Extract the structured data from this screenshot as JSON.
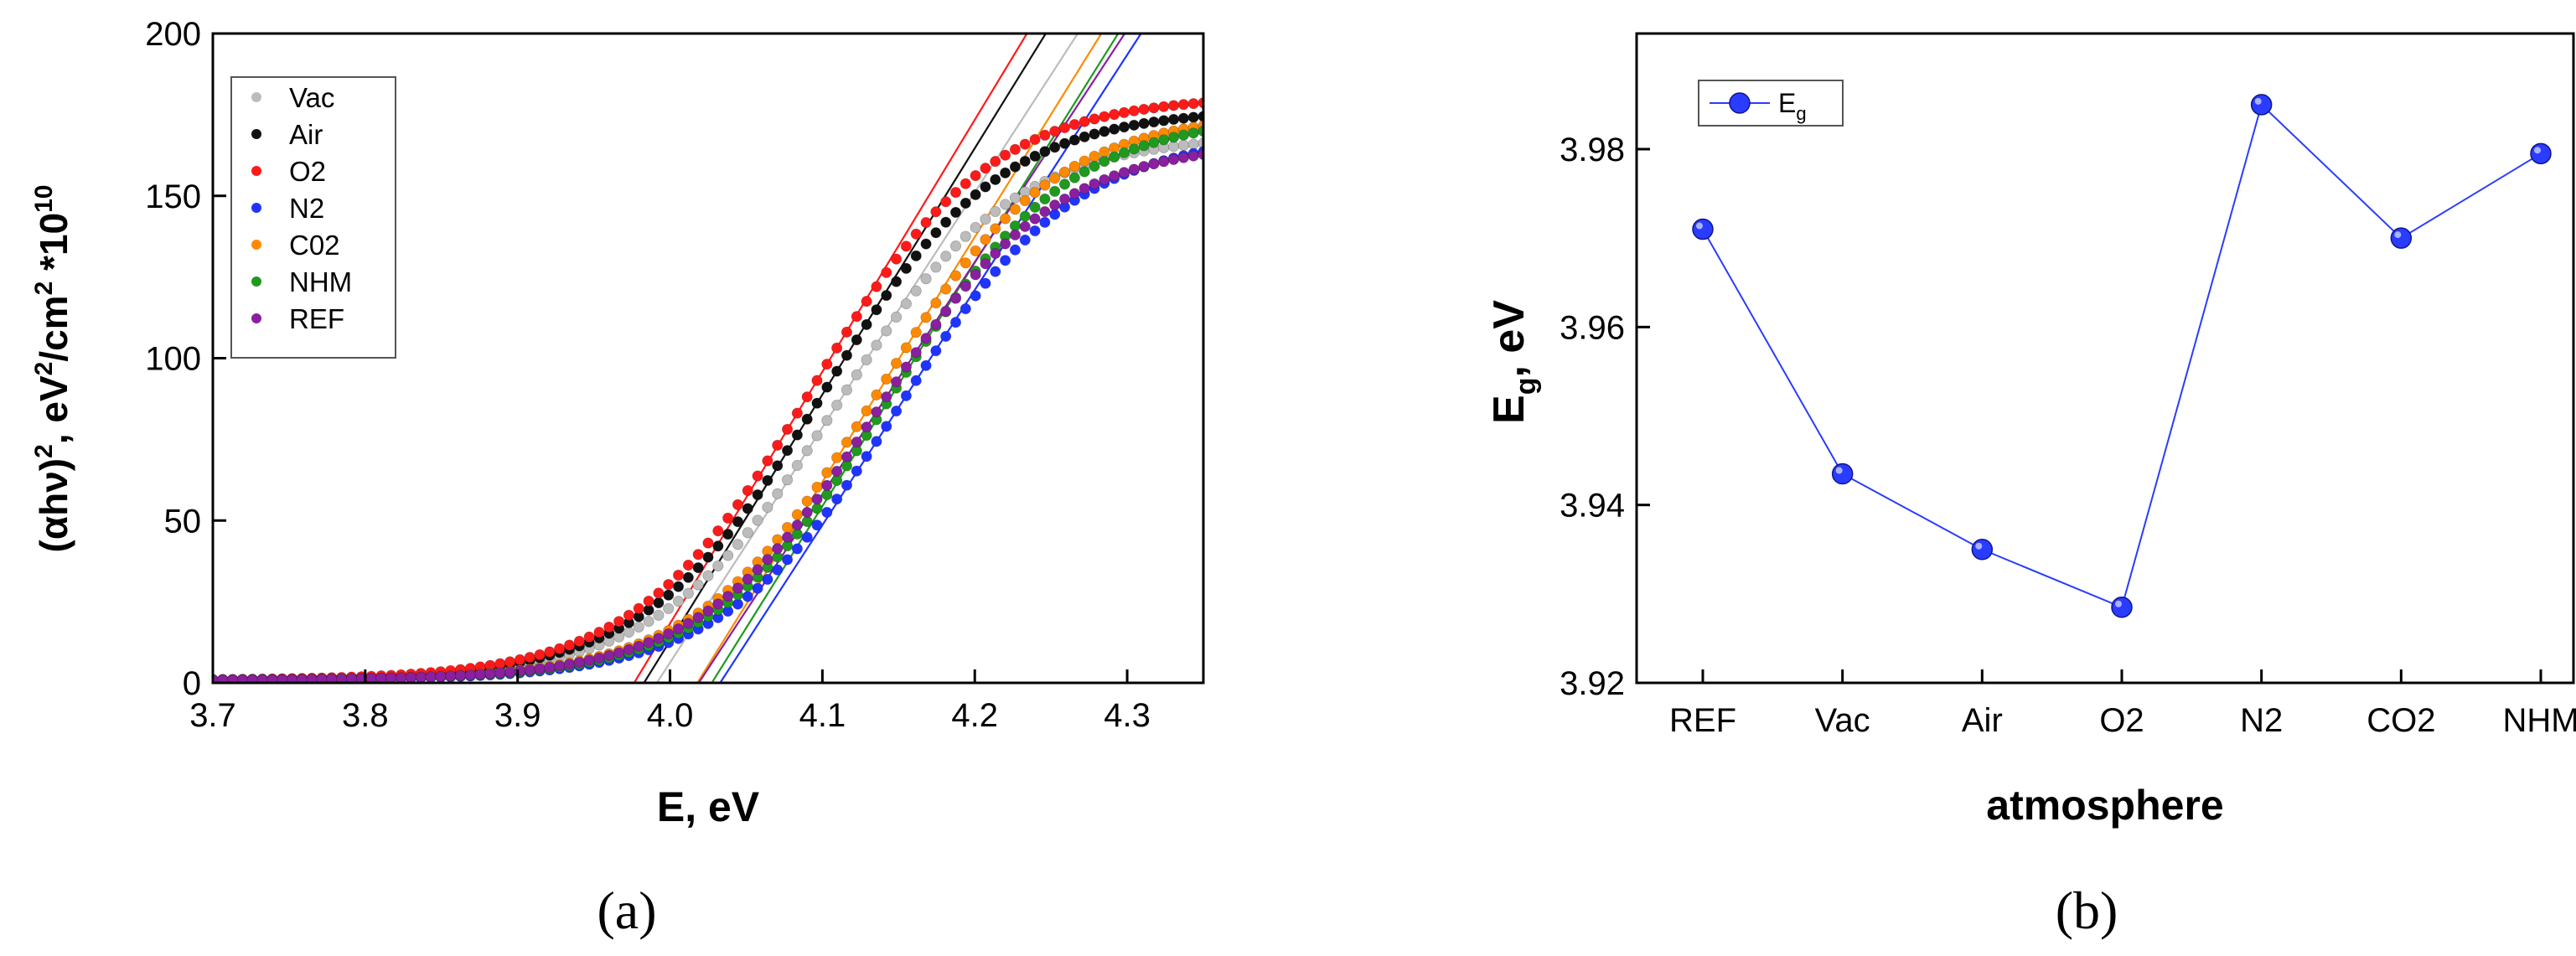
{
  "chart_data": [
    {
      "type": "scatter",
      "panel_label": "(a)",
      "title": "",
      "xlabel": "E, eV",
      "ylabel": {
        "parts": [
          {
            "t": "(αhν)",
            "sup": false
          },
          {
            "t": "2",
            "sup": true
          },
          {
            "t": ", eV",
            "sup": false
          },
          {
            "t": "2",
            "sup": true
          },
          {
            "t": "/cm",
            "sup": false
          },
          {
            "t": "2",
            "sup": true
          },
          {
            "t": " *10",
            "sup": false
          },
          {
            "t": "10",
            "sup": true
          }
        ]
      },
      "xlim": [
        3.7,
        4.35
      ],
      "ylim": [
        0,
        200
      ],
      "xticks": [
        "3.7",
        "3.8",
        "3.9",
        "4.0",
        "4.1",
        "4.2",
        "4.3"
      ],
      "xtick_values": [
        3.7,
        3.8,
        3.9,
        4.0,
        4.1,
        4.2,
        4.3
      ],
      "yticks": [
        "0",
        "50",
        "100",
        "150",
        "200"
      ],
      "ytick_values": [
        0,
        50,
        100,
        150,
        200
      ],
      "legend_position": "top-left",
      "series": [
        {
          "name": "Vac",
          "color": "#bcbcbc",
          "eg": 3.9435,
          "A": 168,
          "fit_x": [
            3.945,
            4.28
          ]
        },
        {
          "name": "Air",
          "color": "#111111",
          "eg": 3.935,
          "A": 176,
          "fit_x": [
            3.937,
            4.28
          ]
        },
        {
          "name": "O2",
          "color": "#ff1a1a",
          "eg": 3.9285,
          "A": 180,
          "fit_x": [
            3.93,
            4.26
          ]
        },
        {
          "name": "N2",
          "color": "#1f35ff",
          "eg": 3.985,
          "A": 168,
          "fit_x": [
            3.988,
            4.315
          ]
        },
        {
          "name": "C02",
          "color": "#ff8a00",
          "eg": 3.97,
          "A": 175,
          "fit_x": [
            3.973,
            4.3
          ]
        },
        {
          "name": "NHM",
          "color": "#1f9a1f",
          "eg": 3.9795,
          "A": 174,
          "fit_x": [
            3.982,
            4.31
          ]
        },
        {
          "name": "REF",
          "color": "#8a1fa0",
          "eg": 3.971,
          "A": 166,
          "fit_x": [
            3.992,
            4.32
          ]
        }
      ]
    },
    {
      "type": "line",
      "panel_label": "(b)",
      "title": "",
      "xlabel": "atmosphere",
      "ylabel": {
        "main": "E",
        "sub": "g",
        "rest": ", eV"
      },
      "categories": [
        "REF",
        "Vac",
        "Air",
        "O2",
        "N2",
        "CO2",
        "NHM"
      ],
      "series": [
        {
          "name": "E",
          "name_sub": "g",
          "color": "#2a3cff",
          "values": [
            3.971,
            3.9435,
            3.935,
            3.9285,
            3.985,
            3.97,
            3.9795
          ]
        }
      ],
      "ylim": [
        3.92,
        3.993
      ],
      "yticks": [
        "3.92",
        "3.94",
        "3.96",
        "3.98"
      ],
      "ytick_values": [
        3.92,
        3.94,
        3.96,
        3.98
      ],
      "legend_position": "top-left"
    }
  ]
}
